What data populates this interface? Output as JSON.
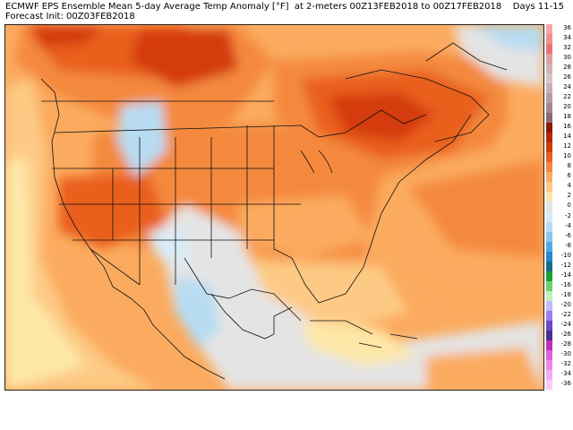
{
  "header": {
    "line1": "ECMWF EPS Ensemble Mean 5-day Average Temp Anomaly [°F]  at 2-meters 00Z13FEB2018 to 00Z17FEB2018",
    "days": "Days 11-15",
    "line2": "Forecast Init: 00Z03FEB2018"
  },
  "legend": {
    "labels": [
      "36",
      "34",
      "32",
      "30",
      "28",
      "26",
      "24",
      "22",
      "20",
      "18",
      "16",
      "14",
      "12",
      "10",
      "8",
      "6",
      "4",
      "2",
      "0",
      "-2",
      "-4",
      "-6",
      "-8",
      "-10",
      "-12",
      "-14",
      "-16",
      "-18",
      "-20",
      "-22",
      "-24",
      "-26",
      "-28",
      "-30",
      "-32",
      "-34",
      "-36"
    ],
    "colors": [
      "#f7a5a8",
      "#f28d8f",
      "#e97378",
      "#d8a0a0",
      "#cfb3b3",
      "#d7c5c5",
      "#c7b0b0",
      "#b59ea0",
      "#a2888c",
      "#8a6b70",
      "#8b1800",
      "#b52500",
      "#d43a08",
      "#e95f1e",
      "#f4893c",
      "#fbab5f",
      "#fdca85",
      "#fde7a7",
      "#e4e4e4",
      "#d8ecf6",
      "#b7dcf2",
      "#8dc5ec",
      "#54a7e2",
      "#2886d2",
      "#1a6c8c",
      "#19a136",
      "#6dd36a",
      "#bff0b8",
      "#c9b8ff",
      "#9d7df2",
      "#6f48c6",
      "#4a2f8d",
      "#c22cba",
      "#e160da",
      "#ee86e8",
      "#f4aaf2",
      "#f8ccf6"
    ]
  }
}
